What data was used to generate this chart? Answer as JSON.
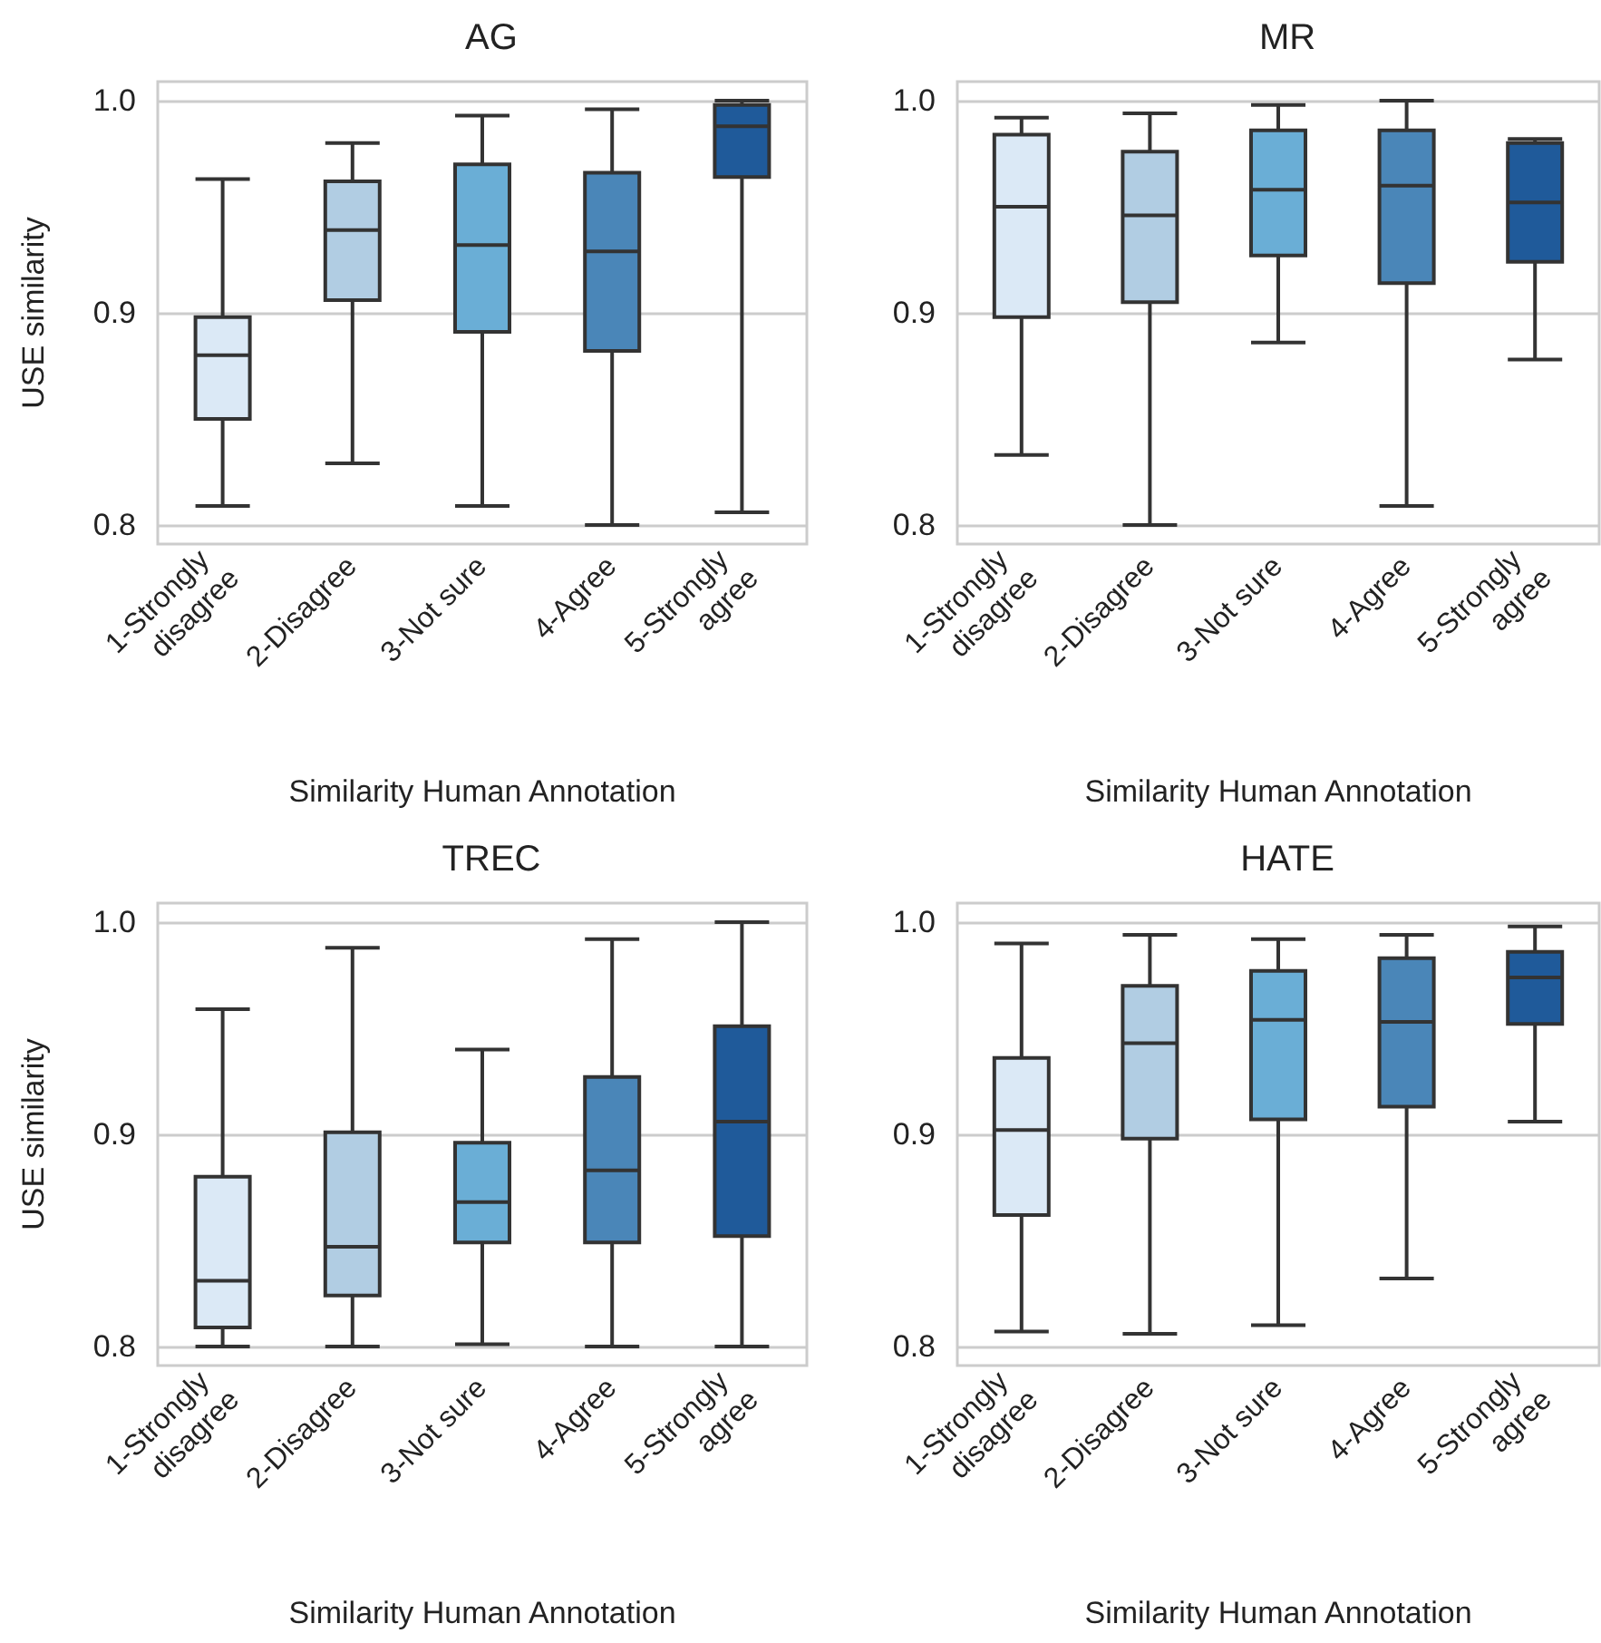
{
  "chart_data": [
    {
      "type": "box",
      "title": "AG",
      "xlabel": "Similarity Human Annotation",
      "ylabel": "USE similarity",
      "categories": [
        "1-Strongly disagree",
        "2-Disagree",
        "3-Not sure",
        "4-Agree",
        "5-Strongly agree"
      ],
      "colors": [
        "#dbe9f6",
        "#b1cde3",
        "#6aaed6",
        "#4a86b8",
        "#1f5a9a"
      ],
      "ylim": [
        0.791,
        1.009
      ],
      "yticks": [
        {
          "value": 0.8,
          "label": "0.8"
        },
        {
          "value": 0.9,
          "label": "0.9"
        },
        {
          "value": 1.0,
          "label": "1.0"
        }
      ],
      "grid": "y",
      "boxes": [
        {
          "low": 0.809,
          "q1": 0.85,
          "median": 0.88,
          "q3": 0.898,
          "high": 0.963
        },
        {
          "low": 0.829,
          "q1": 0.906,
          "median": 0.939,
          "q3": 0.962,
          "high": 0.98
        },
        {
          "low": 0.809,
          "q1": 0.891,
          "median": 0.932,
          "q3": 0.97,
          "high": 0.993
        },
        {
          "low": 0.8,
          "q1": 0.882,
          "median": 0.929,
          "q3": 0.966,
          "high": 0.996
        },
        {
          "low": 0.806,
          "q1": 0.964,
          "median": 0.988,
          "q3": 0.998,
          "high": 1.0
        }
      ]
    },
    {
      "type": "box",
      "title": "MR",
      "xlabel": "Similarity Human Annotation",
      "categories": [
        "1-Strongly disagree",
        "2-Disagree",
        "3-Not sure",
        "4-Agree",
        "5-Strongly agree"
      ],
      "colors": [
        "#dbe9f6",
        "#b1cde3",
        "#6aaed6",
        "#4a86b8",
        "#1f5a9a"
      ],
      "ylim": [
        0.791,
        1.009
      ],
      "yticks": [
        {
          "value": 0.8,
          "label": "0.8"
        },
        {
          "value": 0.9,
          "label": "0.9"
        },
        {
          "value": 1.0,
          "label": "1.0"
        }
      ],
      "grid": "y",
      "boxes": [
        {
          "low": 0.833,
          "q1": 0.898,
          "median": 0.95,
          "q3": 0.984,
          "high": 0.992
        },
        {
          "low": 0.8,
          "q1": 0.905,
          "median": 0.946,
          "q3": 0.976,
          "high": 0.994
        },
        {
          "low": 0.886,
          "q1": 0.927,
          "median": 0.958,
          "q3": 0.986,
          "high": 0.998
        },
        {
          "low": 0.809,
          "q1": 0.914,
          "median": 0.96,
          "q3": 0.986,
          "high": 1.0
        },
        {
          "low": 0.878,
          "q1": 0.924,
          "median": 0.952,
          "q3": 0.98,
          "high": 0.982
        }
      ]
    },
    {
      "type": "box",
      "title": "TREC",
      "xlabel": "Similarity Human Annotation",
      "ylabel": "USE similarity",
      "categories": [
        "1-Strongly disagree",
        "2-Disagree",
        "3-Not sure",
        "4-Agree",
        "5-Strongly agree"
      ],
      "colors": [
        "#dbe9f6",
        "#b1cde3",
        "#6aaed6",
        "#4a86b8",
        "#1f5a9a"
      ],
      "ylim": [
        0.791,
        1.009
      ],
      "yticks": [
        {
          "value": 0.8,
          "label": "0.8"
        },
        {
          "value": 0.9,
          "label": "0.9"
        },
        {
          "value": 1.0,
          "label": "1.0"
        }
      ],
      "grid": "y",
      "boxes": [
        {
          "low": 0.8,
          "q1": 0.809,
          "median": 0.831,
          "q3": 0.88,
          "high": 0.959
        },
        {
          "low": 0.8,
          "q1": 0.824,
          "median": 0.847,
          "q3": 0.901,
          "high": 0.988
        },
        {
          "low": 0.801,
          "q1": 0.849,
          "median": 0.868,
          "q3": 0.896,
          "high": 0.94
        },
        {
          "low": 0.8,
          "q1": 0.849,
          "median": 0.883,
          "q3": 0.927,
          "high": 0.992
        },
        {
          "low": 0.8,
          "q1": 0.852,
          "median": 0.906,
          "q3": 0.951,
          "high": 1.0
        }
      ]
    },
    {
      "type": "box",
      "title": "HATE",
      "xlabel": "Similarity Human Annotation",
      "categories": [
        "1-Strongly disagree",
        "2-Disagree",
        "3-Not sure",
        "4-Agree",
        "5-Strongly agree"
      ],
      "colors": [
        "#dbe9f6",
        "#b1cde3",
        "#6aaed6",
        "#4a86b8",
        "#1f5a9a"
      ],
      "ylim": [
        0.791,
        1.009
      ],
      "yticks": [
        {
          "value": 0.8,
          "label": "0.8"
        },
        {
          "value": 0.9,
          "label": "0.9"
        },
        {
          "value": 1.0,
          "label": "1.0"
        }
      ],
      "grid": "y",
      "boxes": [
        {
          "low": 0.807,
          "q1": 0.862,
          "median": 0.902,
          "q3": 0.936,
          "high": 0.99
        },
        {
          "low": 0.806,
          "q1": 0.898,
          "median": 0.943,
          "q3": 0.97,
          "high": 0.994
        },
        {
          "low": 0.81,
          "q1": 0.907,
          "median": 0.954,
          "q3": 0.977,
          "high": 0.992
        },
        {
          "low": 0.832,
          "q1": 0.913,
          "median": 0.953,
          "q3": 0.983,
          "high": 0.994
        },
        {
          "low": 0.906,
          "q1": 0.952,
          "median": 0.974,
          "q3": 0.986,
          "high": 0.998
        }
      ]
    }
  ]
}
